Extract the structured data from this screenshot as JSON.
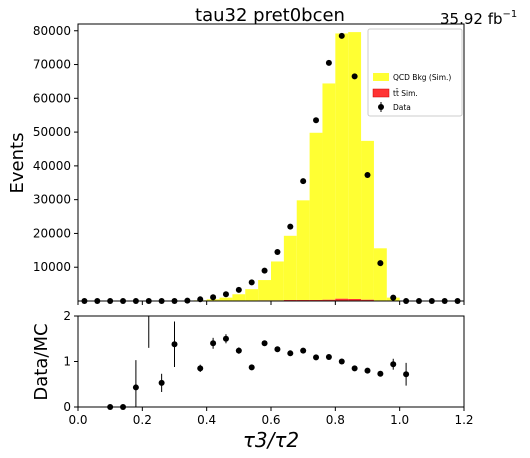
{
  "header": {
    "title": "tau32  pret0bcen",
    "lumi": "35.92 fb",
    "lumi_sup": "−1"
  },
  "chart_data": [
    {
      "type": "bar",
      "panel": "main",
      "ylabel": "Events",
      "xlim": [
        0,
        1.2
      ],
      "ylim": [
        0,
        82000
      ],
      "yticks": [
        10000,
        20000,
        30000,
        40000,
        50000,
        60000,
        70000,
        80000
      ],
      "ytick_labels": [
        "10000",
        "20000",
        "30000",
        "40000",
        "50000",
        "60000",
        "70000",
        "80000"
      ],
      "bin_edges": [
        0.0,
        0.04,
        0.08,
        0.12,
        0.16,
        0.2,
        0.24,
        0.28,
        0.32,
        0.36,
        0.4,
        0.44,
        0.48,
        0.52,
        0.56,
        0.6,
        0.64,
        0.68,
        0.72,
        0.76,
        0.8,
        0.84,
        0.88,
        0.92,
        0.96,
        1.0,
        1.04,
        1.08,
        1.12,
        1.16,
        1.2
      ],
      "legend_position": "top-right",
      "series": [
        {
          "name": "QCD Bkg (Sim.)",
          "kind": "stacked-bar",
          "color": "#ffff33",
          "values": [
            0,
            0,
            0,
            0,
            0,
            0,
            0,
            0,
            50,
            200,
            500,
            1000,
            2000,
            3500,
            6000,
            11500,
            19000,
            29500,
            49500,
            64000,
            78500,
            79000,
            47000,
            15500,
            1000,
            0,
            0,
            0,
            0,
            0
          ]
        },
        {
          "name": "tt̄ Sim.",
          "kind": "stacked-bar",
          "color": "#ff3333",
          "values": [
            0,
            0,
            0,
            0,
            0,
            0,
            0,
            0,
            0,
            0,
            0,
            0,
            0,
            0,
            200,
            200,
            300,
            300,
            300,
            400,
            700,
            600,
            400,
            100,
            0,
            0,
            0,
            0,
            0,
            0
          ]
        },
        {
          "name": "Data",
          "kind": "points",
          "color": "#000000",
          "x": [
            0.02,
            0.06,
            0.1,
            0.14,
            0.18,
            0.22,
            0.26,
            0.3,
            0.34,
            0.38,
            0.42,
            0.46,
            0.5,
            0.54,
            0.58,
            0.62,
            0.66,
            0.7,
            0.74,
            0.78,
            0.82,
            0.86,
            0.9,
            0.94,
            0.98,
            1.02,
            1.06,
            1.1,
            1.14,
            1.18
          ],
          "y": [
            0,
            0,
            0,
            0,
            0,
            0,
            0,
            0,
            100,
            500,
            1100,
            2000,
            3300,
            5500,
            9000,
            14500,
            22000,
            35500,
            53500,
            70500,
            78500,
            66500,
            37300,
            11200,
            1000,
            0,
            0,
            0,
            0,
            0
          ]
        }
      ]
    },
    {
      "type": "scatter",
      "panel": "ratio",
      "xlabel": "τ3/τ2",
      "ylabel": "Data/MC",
      "xlim": [
        0,
        1.2
      ],
      "ylim": [
        0,
        2
      ],
      "xticks": [
        0.0,
        0.2,
        0.4,
        0.6,
        0.8,
        1.0,
        1.2
      ],
      "xtick_labels": [
        "0.0",
        "0.2",
        "0.4",
        "0.6",
        "0.8",
        "1.0",
        "1.2"
      ],
      "yticks": [
        0,
        1,
        2
      ],
      "ytick_labels": [
        "0",
        "1",
        "2"
      ],
      "series": [
        {
          "name": "Data/MC",
          "x": [
            0.1,
            0.14,
            0.18,
            0.22,
            0.26,
            0.3,
            0.38,
            0.42,
            0.46,
            0.5,
            0.54,
            0.58,
            0.62,
            0.66,
            0.7,
            0.74,
            0.78,
            0.82,
            0.86,
            0.9,
            0.94,
            0.98,
            1.02
          ],
          "y": [
            0,
            0,
            0.43,
            2.5,
            0.53,
            1.38,
            0.85,
            1.4,
            1.5,
            1.24,
            0.87,
            1.4,
            1.27,
            1.18,
            1.24,
            1.09,
            1.1,
            1.0,
            0.85,
            0.8,
            0.73,
            0.94,
            0.72
          ],
          "yerr": [
            0,
            0,
            0.6,
            1.2,
            0.2,
            0.5,
            0.08,
            0.12,
            0.1,
            0.07,
            0.05,
            0.05,
            0.04,
            0.03,
            0.03,
            0.02,
            0.02,
            0.02,
            0.02,
            0.03,
            0.05,
            0.12,
            0.25
          ]
        }
      ]
    }
  ]
}
